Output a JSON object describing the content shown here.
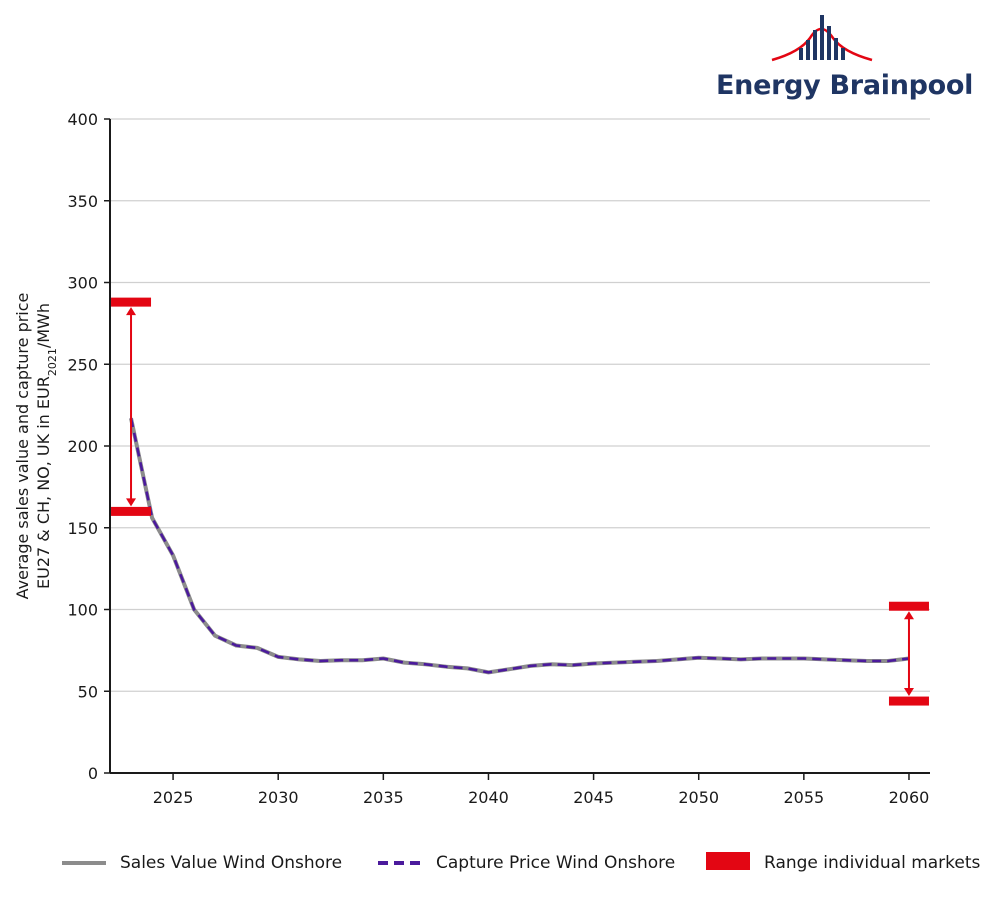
{
  "logo": {
    "text": "Energy Brainpool",
    "text_color": "#1f3563",
    "bars_color": "#1f3563",
    "arc_color": "#e30613"
  },
  "chart_data": {
    "type": "line",
    "ylabel_line1": "Average sales value and capture price",
    "ylabel_line2_pre": "EU27 & CH, NO, UK in EUR",
    "ylabel_line2_sub": "2021",
    "ylabel_line2_post": "/MWh",
    "ylim": [
      0,
      400
    ],
    "yticks": [
      0,
      50,
      100,
      150,
      200,
      250,
      300,
      350,
      400
    ],
    "xlim": [
      2022,
      2061
    ],
    "xticks": [
      2025,
      2030,
      2035,
      2040,
      2045,
      2050,
      2055,
      2060
    ],
    "grid": true,
    "legend_position": "bottom",
    "x": [
      2023,
      2024,
      2025,
      2026,
      2027,
      2028,
      2029,
      2030,
      2031,
      2032,
      2033,
      2034,
      2035,
      2036,
      2037,
      2038,
      2039,
      2040,
      2041,
      2042,
      2043,
      2044,
      2045,
      2046,
      2047,
      2048,
      2049,
      2050,
      2051,
      2052,
      2053,
      2054,
      2055,
      2056,
      2057,
      2058,
      2059,
      2060
    ],
    "series": [
      {
        "name": "Sales Value Wind Onshore",
        "color": "#8c8c8c",
        "style": "solid",
        "values": [
          217,
          156,
          133,
          100,
          84,
          78,
          76.5,
          71,
          69.5,
          68.5,
          69,
          69,
          70,
          67.5,
          66.5,
          65,
          64,
          61.5,
          63.5,
          65.5,
          66.5,
          66,
          67,
          67.5,
          68,
          68.5,
          69.5,
          70.5,
          70,
          69.5,
          70,
          70,
          70,
          69.5,
          69,
          68.5,
          68.5,
          70
        ]
      },
      {
        "name": "Capture Price Wind Onshore",
        "color": "#4b1a9c",
        "style": "dashed",
        "values": [
          217,
          156,
          133,
          100,
          84,
          78,
          76.5,
          71,
          69.5,
          68.5,
          69,
          69,
          70,
          67.5,
          66.5,
          65,
          64,
          61.5,
          63.5,
          65.5,
          66.5,
          66,
          67,
          67.5,
          68,
          68.5,
          69.5,
          70.5,
          70,
          69.5,
          70,
          70,
          70,
          69.5,
          69,
          68.5,
          68.5,
          70
        ]
      }
    ],
    "ranges": {
      "name": "Range individual markets",
      "color": "#e30613",
      "items": [
        {
          "x": 2023,
          "low": 160,
          "high": 288
        },
        {
          "x": 2060,
          "low": 44,
          "high": 102
        }
      ]
    }
  },
  "legend": [
    {
      "label": "Sales Value Wind Onshore",
      "kind": "solid",
      "color": "#8c8c8c"
    },
    {
      "label": "Capture Price Wind Onshore",
      "kind": "dashed",
      "color": "#4b1a9c"
    },
    {
      "label": "Range individual markets",
      "kind": "box",
      "color": "#e30613"
    }
  ]
}
